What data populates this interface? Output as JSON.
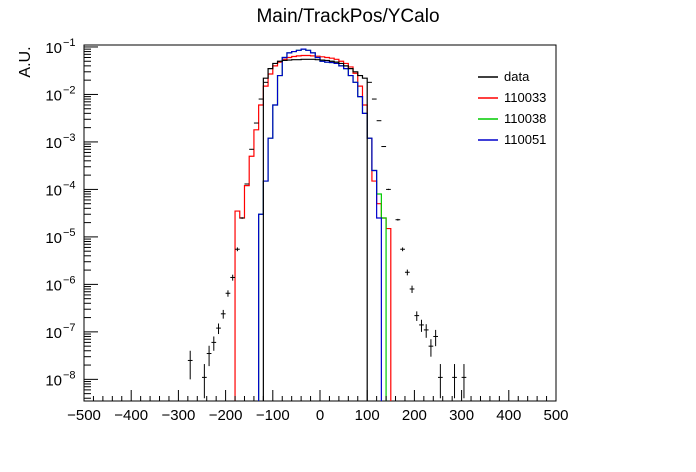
{
  "chart_data": {
    "type": "histogram",
    "title": "Main/TrackPos/YCalo",
    "xlabel": "",
    "ylabel": "A.U.",
    "xlim": [
      -500,
      500
    ],
    "ylim": [
      3.5e-09,
      0.11
    ],
    "yscale": "log",
    "bin_width": 10,
    "x_ticks": [
      -500,
      -400,
      -300,
      -200,
      -100,
      0,
      100,
      200,
      300,
      400,
      500
    ],
    "x_tick_labels": [
      "−500",
      "−400",
      "−300",
      "−200",
      "−100",
      "0",
      "100",
      "200",
      "300",
      "400",
      "500"
    ],
    "y_ticks": [
      1e-08,
      1e-07,
      1e-06,
      1e-05,
      0.0001,
      0.001,
      0.01,
      0.1
    ],
    "y_tick_labels": [
      {
        "base": "10",
        "exp": "−8"
      },
      {
        "base": "10",
        "exp": "−7"
      },
      {
        "base": "10",
        "exp": "−6"
      },
      {
        "base": "10",
        "exp": "−5"
      },
      {
        "base": "10",
        "exp": "−4"
      },
      {
        "base": "10",
        "exp": "−3"
      },
      {
        "base": "10",
        "exp": "−2"
      },
      {
        "base": "10",
        "exp": "−1"
      }
    ],
    "legend_position": "top-right",
    "series": [
      {
        "name": "data",
        "style": "points",
        "color": "#000000",
        "points": [
          {
            "x": -275,
            "y": 2.5e-08,
            "err_lo": 1.5e-08,
            "err_hi": 1.5e-08
          },
          {
            "x": -245,
            "y": 1.1e-08,
            "err_lo": 7e-09,
            "err_hi": 1e-08
          },
          {
            "x": -235,
            "y": 3.5e-08,
            "err_lo": 1.6e-08,
            "err_hi": 1.6e-08
          },
          {
            "x": -225,
            "y": 6e-08,
            "err_lo": 2e-08,
            "err_hi": 2e-08
          },
          {
            "x": -215,
            "y": 1.2e-07,
            "err_lo": 3e-08,
            "err_hi": 3e-08
          },
          {
            "x": -205,
            "y": 2.4e-07,
            "err_lo": 5e-08,
            "err_hi": 5e-08
          },
          {
            "x": -195,
            "y": 6.5e-07,
            "err_lo": 1e-07,
            "err_hi": 1e-07
          },
          {
            "x": -185,
            "y": 1.4e-06,
            "err_lo": 2e-07,
            "err_hi": 2e-07
          },
          {
            "x": -175,
            "y": 5.5e-06,
            "err_lo": 5e-07,
            "err_hi": 5e-07
          },
          {
            "x": -165,
            "y": 2.5e-05,
            "err_lo": 1e-06,
            "err_hi": 1e-06
          },
          {
            "x": -155,
            "y": 0.00013,
            "err_lo": 3e-06,
            "err_hi": 3e-06
          },
          {
            "x": -145,
            "y": 0.0007,
            "err_lo": 1e-05,
            "err_hi": 1e-05
          },
          {
            "x": -135,
            "y": 0.0025,
            "err_lo": 2e-05,
            "err_hi": 2e-05
          },
          {
            "x": -125,
            "y": 0.008,
            "err_lo": 5e-05,
            "err_hi": 5e-05
          },
          {
            "x": -115,
            "y": 0.018,
            "err_lo": 0.0001,
            "err_hi": 0.0001
          },
          {
            "x": 105,
            "y": 0.018,
            "err_lo": 0.0001,
            "err_hi": 0.0001
          },
          {
            "x": 115,
            "y": 0.008,
            "err_lo": 5e-05,
            "err_hi": 5e-05
          },
          {
            "x": 125,
            "y": 0.0028,
            "err_lo": 2e-05,
            "err_hi": 2e-05
          },
          {
            "x": 135,
            "y": 0.0008,
            "err_lo": 1e-05,
            "err_hi": 1e-05
          },
          {
            "x": 145,
            "y": 0.0001,
            "err_lo": 3e-06,
            "err_hi": 3e-06
          },
          {
            "x": 165,
            "y": 2.3e-05,
            "err_lo": 1e-06,
            "err_hi": 1e-06
          },
          {
            "x": 175,
            "y": 5.5e-06,
            "err_lo": 5e-07,
            "err_hi": 5e-07
          },
          {
            "x": 185,
            "y": 1.8e-06,
            "err_lo": 2.5e-07,
            "err_hi": 2.5e-07
          },
          {
            "x": 195,
            "y": 8e-07,
            "err_lo": 1.4e-07,
            "err_hi": 1.4e-07
          },
          {
            "x": 205,
            "y": 2.2e-07,
            "err_lo": 5e-08,
            "err_hi": 5e-08
          },
          {
            "x": 215,
            "y": 1.4e-07,
            "err_lo": 4e-08,
            "err_hi": 4e-08
          },
          {
            "x": 225,
            "y": 1.1e-07,
            "err_lo": 3.5e-08,
            "err_hi": 3.5e-08
          },
          {
            "x": 235,
            "y": 5e-08,
            "err_lo": 2e-08,
            "err_hi": 2e-08
          },
          {
            "x": 245,
            "y": 8e-08,
            "err_lo": 3e-08,
            "err_hi": 3e-08
          },
          {
            "x": 255,
            "y": 1.1e-08,
            "err_lo": 7e-09,
            "err_hi": 1e-08
          },
          {
            "x": 285,
            "y": 1.1e-08,
            "err_lo": 7e-09,
            "err_hi": 1e-08
          },
          {
            "x": 305,
            "y": 1.1e-08,
            "err_lo": 7e-09,
            "err_hi": 1e-08
          }
        ],
        "hist_start": -120,
        "values": [
          0.022,
          0.035,
          0.045,
          0.05,
          0.052,
          0.053,
          0.054,
          0.054,
          0.055,
          0.055,
          0.055,
          0.054,
          0.053,
          0.052,
          0.05,
          0.048,
          0.045,
          0.04,
          0.035,
          0.03,
          0.025,
          0.022
        ]
      },
      {
        "name": "110033",
        "style": "step",
        "color": "#ff0000",
        "hist_start": -180,
        "values": [
          3.5e-05,
          2.5e-05,
          0.00012,
          0.0005,
          0.0018,
          0.006,
          0.015,
          0.027,
          0.04,
          0.048,
          0.055,
          0.06,
          0.063,
          0.065,
          0.066,
          0.066,
          0.065,
          0.064,
          0.062,
          0.06,
          0.058,
          0.055,
          0.05,
          0.045,
          0.038,
          0.028,
          0.015,
          0.006,
          0.0012,
          0.00015,
          5e-05,
          2.5e-05,
          1.5e-05
        ]
      },
      {
        "name": "110038",
        "style": "step",
        "color": "#00cc00",
        "hist_start": -130,
        "values": [
          3e-05,
          0.00015,
          0.0012,
          0.006,
          0.025,
          0.06,
          0.075,
          0.08,
          0.085,
          0.09,
          0.085,
          0.075,
          0.06,
          0.05,
          0.048,
          0.047,
          0.045,
          0.04,
          0.035,
          0.025,
          0.018,
          0.009,
          0.004,
          0.0012,
          0.00025,
          8e-05,
          2.5e-05
        ]
      },
      {
        "name": "110051",
        "style": "step",
        "color": "#0000cc",
        "hist_start": -130,
        "values": [
          3e-05,
          0.00015,
          0.0012,
          0.006,
          0.025,
          0.06,
          0.075,
          0.08,
          0.085,
          0.09,
          0.085,
          0.075,
          0.06,
          0.05,
          0.048,
          0.047,
          0.045,
          0.04,
          0.035,
          0.025,
          0.018,
          0.009,
          0.004,
          0.0012,
          0.00025,
          2.5e-05
        ]
      }
    ]
  }
}
